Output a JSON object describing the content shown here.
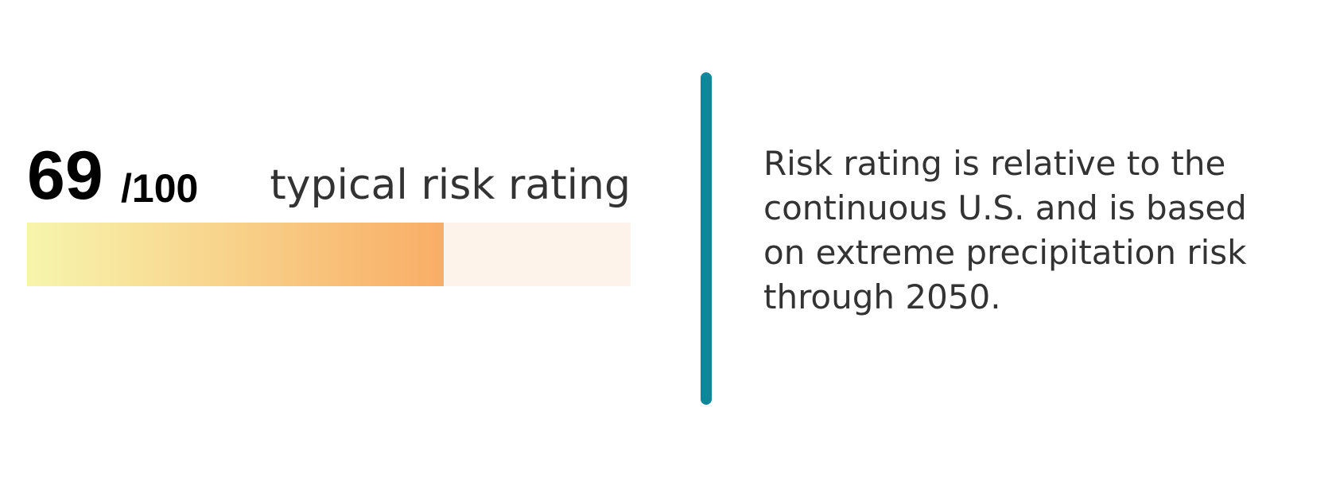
{
  "score": {
    "value": 69,
    "scale": {
      "value": 100,
      "label": "/100"
    },
    "caption": "typical risk rating"
  },
  "description": {
    "lines": [
      "Risk rating is relative to the",
      "continuous U.S. and is based",
      "on extreme precipitation risk",
      "through 2050."
    ]
  }
}
